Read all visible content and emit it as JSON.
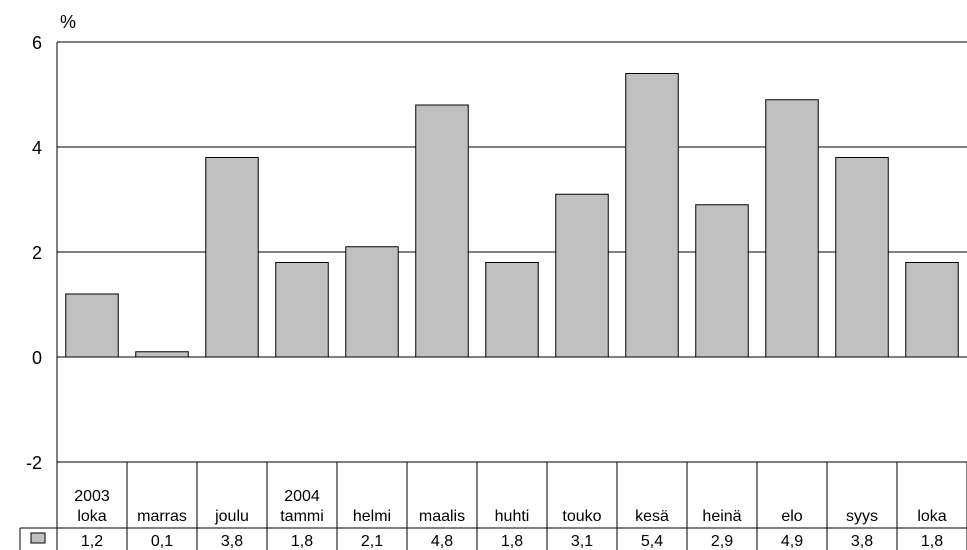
{
  "chart_data": {
    "type": "bar",
    "unit": "%",
    "categories": [
      [
        "2003",
        "loka"
      ],
      [
        "",
        "marras"
      ],
      [
        "",
        "joulu"
      ],
      [
        "2004",
        "tammi"
      ],
      [
        "",
        "helmi"
      ],
      [
        "",
        "maalis"
      ],
      [
        "",
        "huhti"
      ],
      [
        "",
        "touko"
      ],
      [
        "",
        "kesä"
      ],
      [
        "",
        "heinä"
      ],
      [
        "",
        "elo"
      ],
      [
        "",
        "syys"
      ],
      [
        "",
        "loka"
      ]
    ],
    "values": [
      1.2,
      0.1,
      3.8,
      1.8,
      2.1,
      4.8,
      1.8,
      3.1,
      5.4,
      2.9,
      4.9,
      3.8,
      1.8
    ],
    "value_labels": [
      "1,2",
      "0,1",
      "3,8",
      "1,8",
      "2,1",
      "4,8",
      "1,8",
      "3,1",
      "5,4",
      "2,9",
      "4,9",
      "3,8",
      "1,8"
    ],
    "ylim": [
      -2,
      6
    ],
    "yticks": [
      6,
      4,
      2,
      0,
      -2
    ],
    "gridlines": true,
    "data_table": true,
    "bar_color": "#c0c0c0",
    "bar_edge_color": "#000000"
  }
}
